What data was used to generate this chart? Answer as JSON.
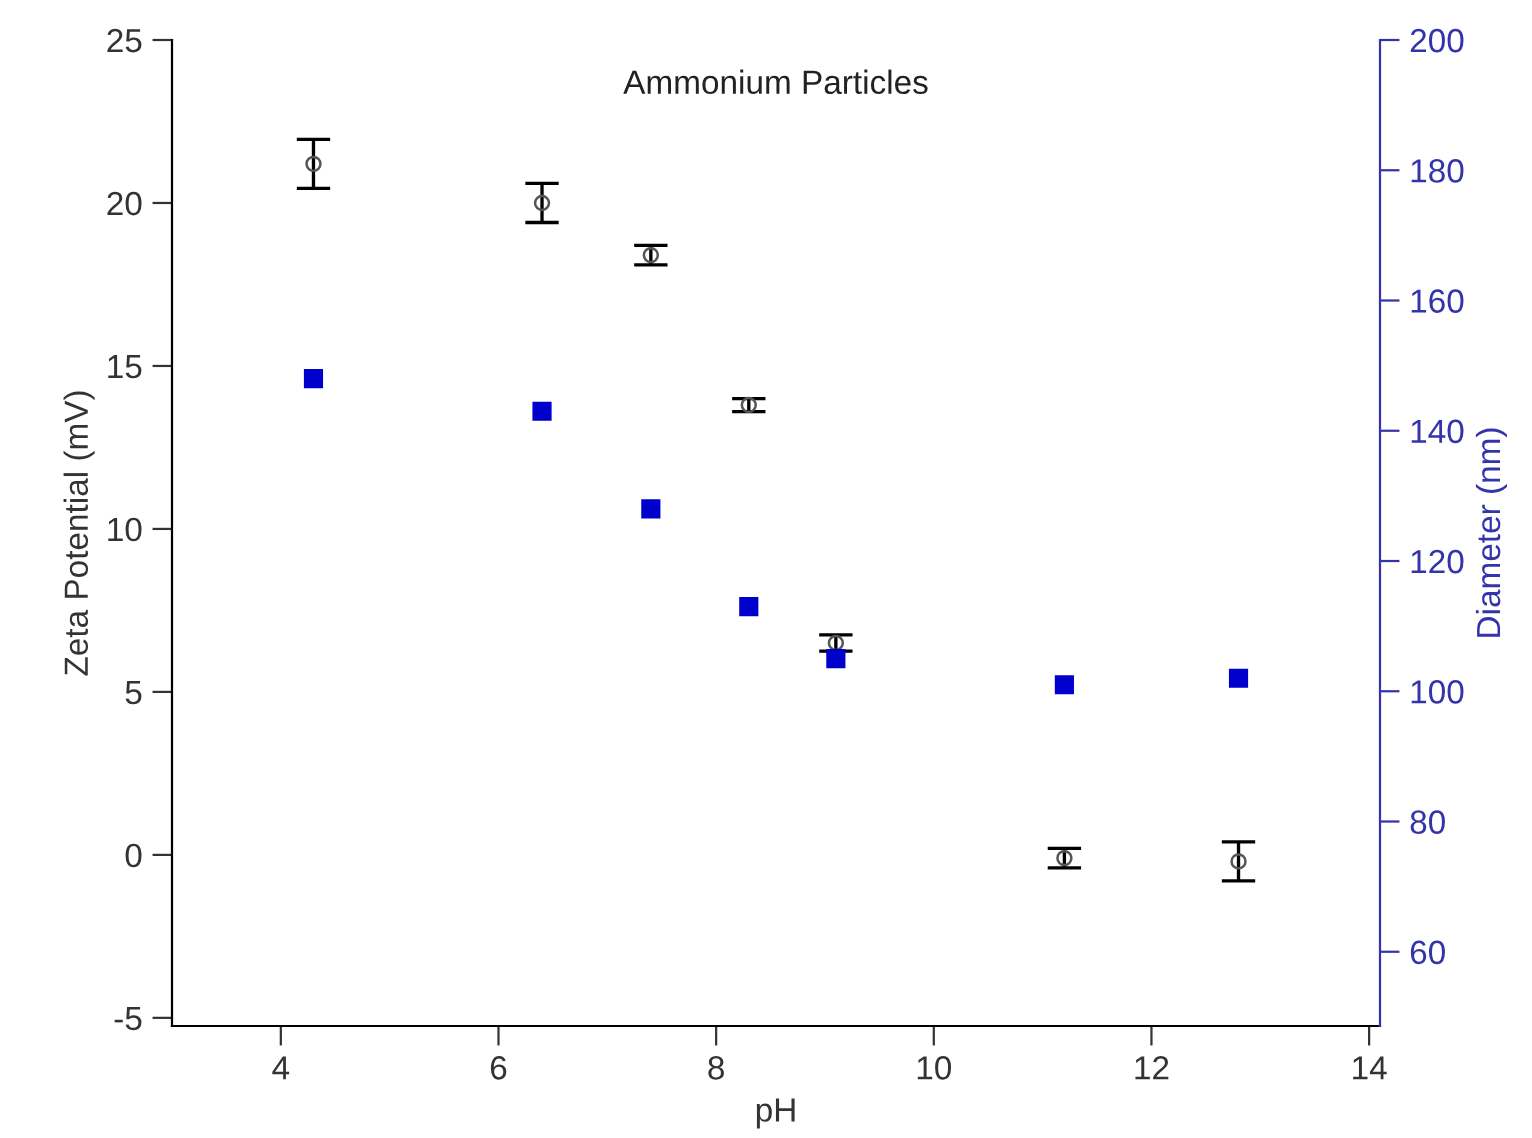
{
  "chart_data": {
    "type": "scatter",
    "title": "Ammonium Particles",
    "xlabel": "pH",
    "ylabel": "Zeta Potential (mV)",
    "y2label": "Diameter (nm)",
    "x": [
      4.3,
      6.4,
      7.4,
      8.3,
      9.1,
      11.2,
      12.8
    ],
    "series": [
      {
        "color": "#555555",
        "marker": "circle",
        "values": [
          21.2,
          20.0,
          18.4,
          13.8,
          6.5,
          -0.1,
          -0.2
        ],
        "errors": [
          0.75,
          0.6,
          0.3,
          0.2,
          0.25,
          0.3,
          0.6
        ]
      },
      {
        "color": "#0000cc",
        "marker": "square",
        "axis": "y2",
        "values": [
          148,
          143,
          128,
          113,
          105,
          101,
          102
        ]
      }
    ],
    "xlim": [
      3,
      14.1
    ],
    "xticks": [
      4,
      6,
      8,
      10,
      12,
      14
    ],
    "ylim": [
      -5.25,
      25
    ],
    "yticks": [
      -5,
      0,
      5,
      10,
      15,
      20,
      25
    ],
    "y2lim": [
      48.6,
      200
    ],
    "y2ticks": [
      60,
      80,
      100,
      120,
      140,
      160,
      180,
      200
    ],
    "grid": false,
    "legend": false
  }
}
